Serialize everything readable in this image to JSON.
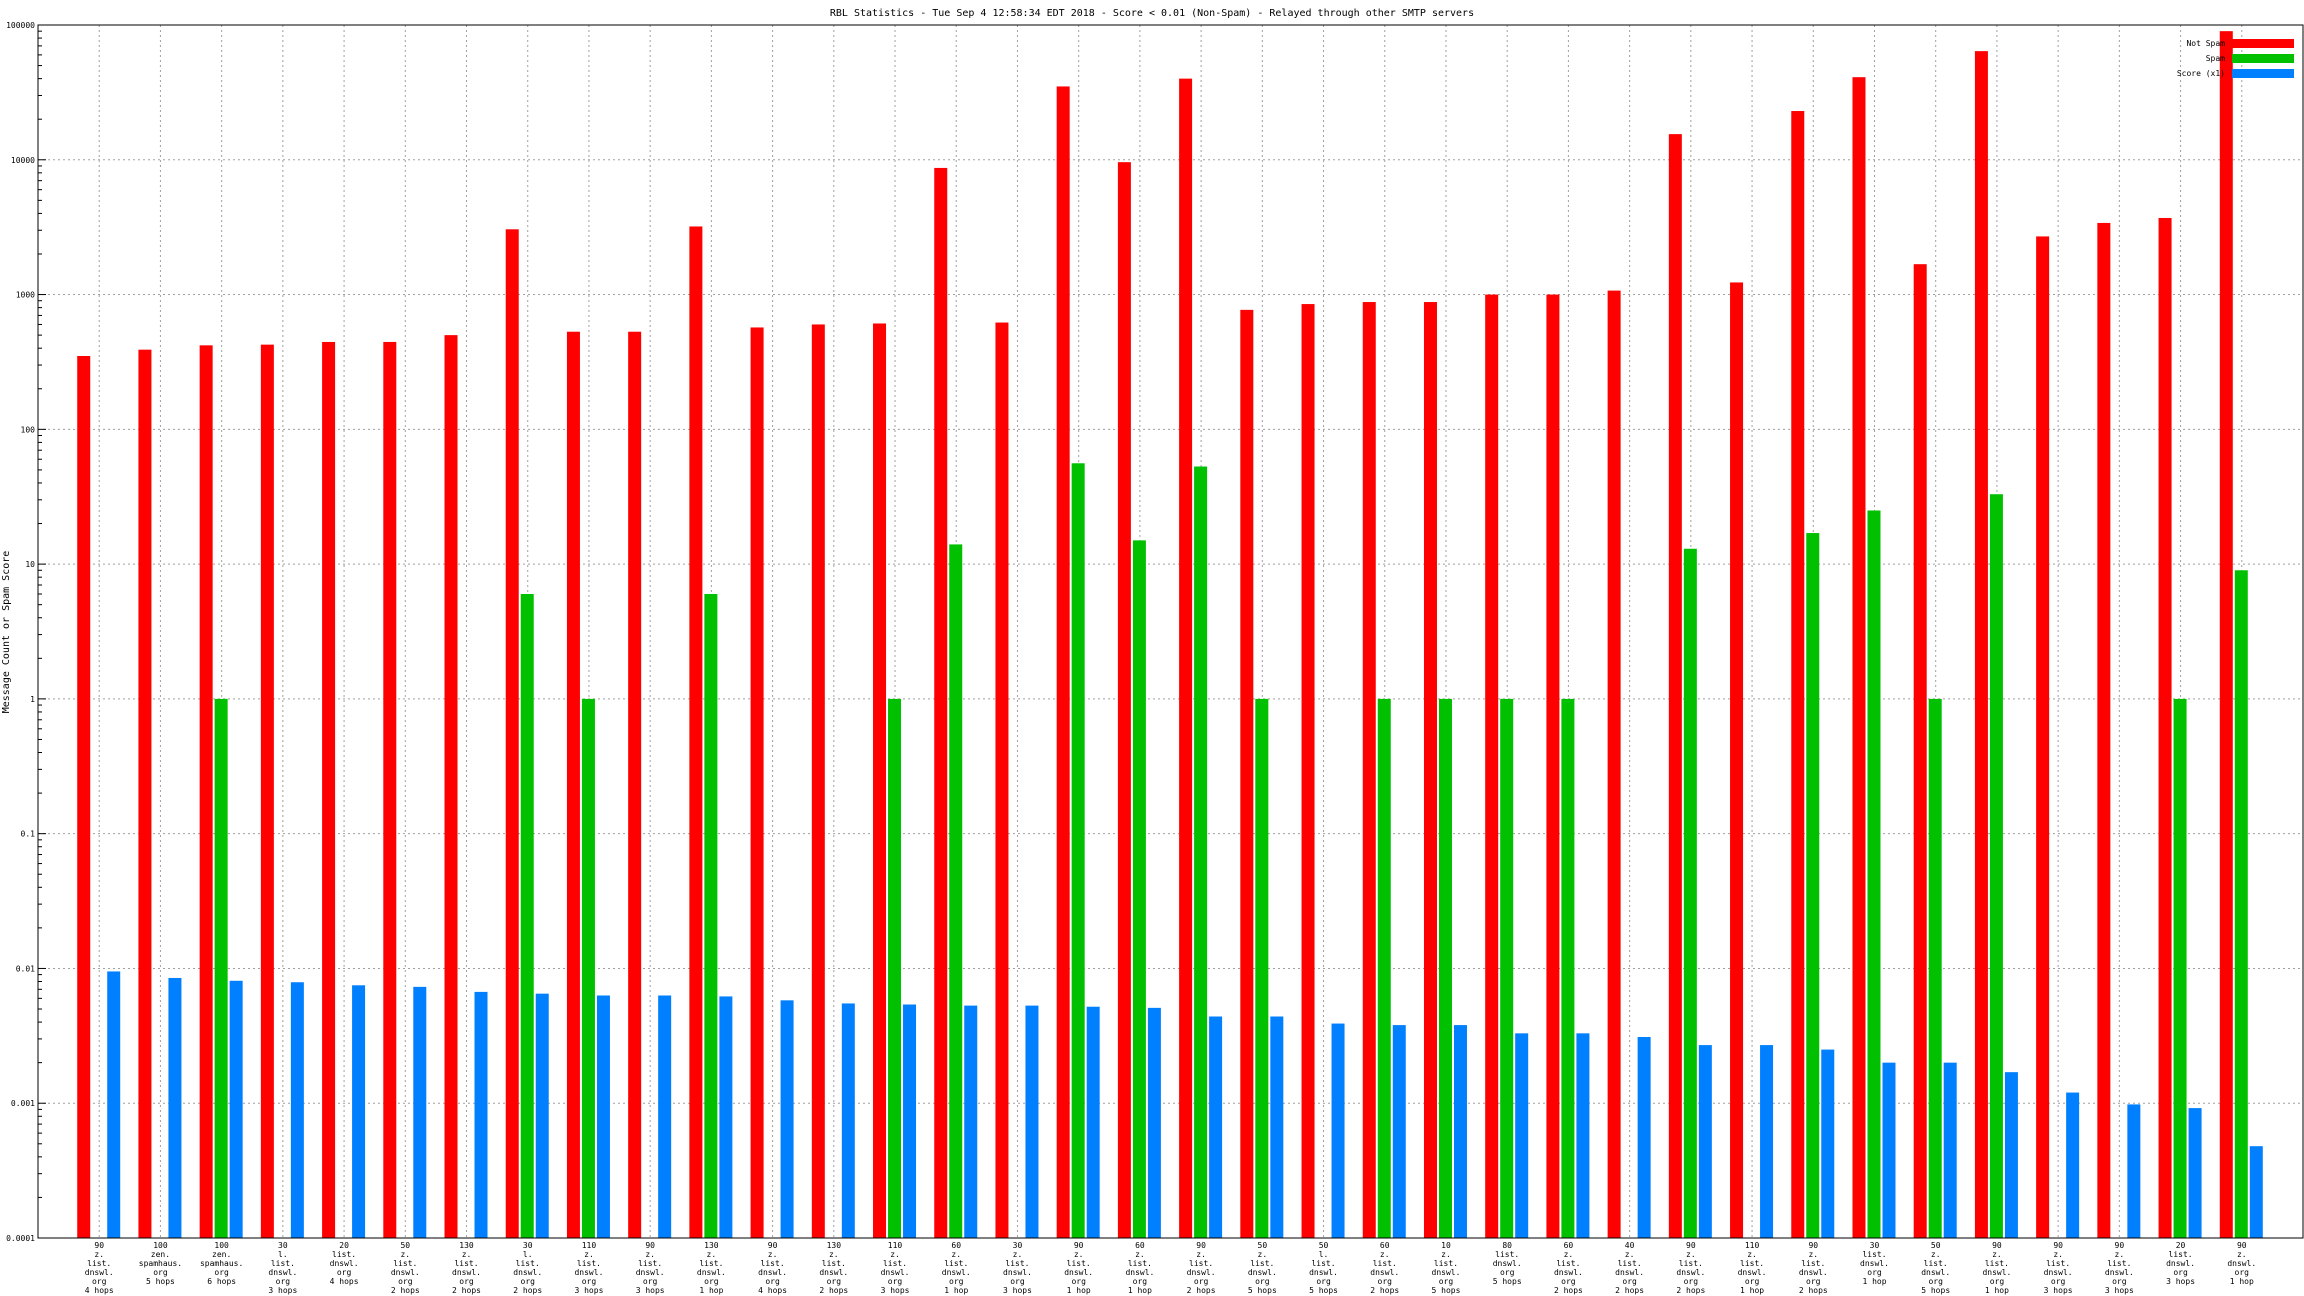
{
  "chart_data": {
    "type": "bar",
    "title": "RBL Statistics - Tue Sep  4 12:58:34 EDT 2018 - Score < 0.01 (Non-Spam) - Relayed through other SMTP servers",
    "ylabel": "Message Count or Spam Score",
    "xlabel": "",
    "yscale": "log",
    "ylim": [
      0.0001,
      100000
    ],
    "yticks": [
      "0.0001",
      "0.001",
      "0.01",
      "0.1",
      "1",
      "10",
      "100",
      "1000",
      "10000",
      "100000"
    ],
    "grid": true,
    "legend_position": "top-right",
    "categories": [
      [
        "90",
        "z.",
        "list.",
        "dnswl.",
        "org",
        "4 hops"
      ],
      [
        "100",
        "zen.",
        "spamhaus.",
        "org",
        "5 hops"
      ],
      [
        "100",
        "zen.",
        "spamhaus.",
        "org",
        "6 hops"
      ],
      [
        "30",
        "l.",
        "list.",
        "dnswl.",
        "org",
        "3 hops"
      ],
      [
        "20",
        "list.",
        "dnswl.",
        "org",
        "4 hops"
      ],
      [
        "50",
        "z.",
        "list.",
        "dnswl.",
        "org",
        "2 hops"
      ],
      [
        "130",
        "z.",
        "list.",
        "dnswl.",
        "org",
        "2 hops"
      ],
      [
        "30",
        "l.",
        "list.",
        "dnswl.",
        "org",
        "2 hops"
      ],
      [
        "110",
        "z.",
        "list.",
        "dnswl.",
        "org",
        "3 hops"
      ],
      [
        "90",
        "z.",
        "list.",
        "dnswl.",
        "org",
        "3 hops"
      ],
      [
        "130",
        "z.",
        "list.",
        "dnswl.",
        "org",
        "1 hop"
      ],
      [
        "90",
        "z.",
        "list.",
        "dnswl.",
        "org",
        "4 hops"
      ],
      [
        "130",
        "z.",
        "list.",
        "dnswl.",
        "org",
        "2 hops"
      ],
      [
        "110",
        "z.",
        "list.",
        "dnswl.",
        "org",
        "3 hops"
      ],
      [
        "60",
        "z.",
        "list.",
        "dnswl.",
        "org",
        "1 hop"
      ],
      [
        "30",
        "z.",
        "list.",
        "dnswl.",
        "org",
        "3 hops"
      ],
      [
        "90",
        "z.",
        "list.",
        "dnswl.",
        "org",
        "1 hop"
      ],
      [
        "60",
        "z.",
        "list.",
        "dnswl.",
        "org",
        "1 hop"
      ],
      [
        "90",
        "z.",
        "list.",
        "dnswl.",
        "org",
        "2 hops"
      ],
      [
        "50",
        "z.",
        "list.",
        "dnswl.",
        "org",
        "5 hops"
      ],
      [
        "50",
        "l.",
        "list.",
        "dnswl.",
        "org",
        "5 hops"
      ],
      [
        "60",
        "z.",
        "list.",
        "dnswl.",
        "org",
        "2 hops"
      ],
      [
        "10",
        "z.",
        "list.",
        "dnswl.",
        "org",
        "5 hops"
      ],
      [
        "80",
        "list.",
        "dnswl.",
        "org",
        "5 hops"
      ],
      [
        "60",
        "z.",
        "list.",
        "dnswl.",
        "org",
        "2 hops"
      ],
      [
        "40",
        "z.",
        "list.",
        "dnswl.",
        "org",
        "2 hops"
      ],
      [
        "90",
        "z.",
        "list.",
        "dnswl.",
        "org",
        "2 hops"
      ],
      [
        "110",
        "z.",
        "list.",
        "dnswl.",
        "org",
        "1 hop"
      ],
      [
        "90",
        "z.",
        "list.",
        "dnswl.",
        "org",
        "2 hops"
      ],
      [
        "30",
        "list.",
        "dnswl.",
        "org",
        "1 hop"
      ],
      [
        "50",
        "z.",
        "list.",
        "dnswl.",
        "org",
        "5 hops"
      ],
      [
        "90",
        "z.",
        "list.",
        "dnswl.",
        "org",
        "1 hop"
      ],
      [
        "90",
        "z.",
        "list.",
        "dnswl.",
        "org",
        "3 hops"
      ],
      [
        "90",
        "z.",
        "list.",
        "dnswl.",
        "org",
        "3 hops"
      ],
      [
        "20",
        "list.",
        "dnswl.",
        "org",
        "3 hops"
      ],
      [
        "90",
        "z.",
        "dnswl.",
        "org",
        "1 hop"
      ]
    ],
    "series": [
      {
        "name": "Not Spam",
        "color": "#ff0000",
        "values": [
          350,
          390,
          420,
          425,
          445,
          445,
          500,
          3050,
          530,
          530,
          3200,
          570,
          600,
          610,
          8700,
          620,
          35000,
          9600,
          40000,
          770,
          850,
          880,
          880,
          1000,
          1000,
          1070,
          15500,
          1230,
          23000,
          41000,
          1680,
          64000,
          2700,
          3400,
          3700,
          90000
        ]
      },
      {
        "name": "Spam",
        "color": "#00c000",
        "values": [
          null,
          null,
          1,
          null,
          null,
          null,
          null,
          6,
          1,
          null,
          6,
          null,
          null,
          1,
          14,
          null,
          56,
          15,
          53,
          1,
          null,
          1,
          1,
          1,
          1,
          null,
          13,
          null,
          17,
          25,
          1,
          33,
          null,
          null,
          1,
          9
        ]
      },
      {
        "name": "Score (x1)",
        "color": "#0080ff",
        "values": [
          0.0095,
          0.0085,
          0.0081,
          0.0079,
          0.0075,
          0.0073,
          0.0067,
          0.0065,
          0.0063,
          0.0063,
          0.0062,
          0.0058,
          0.0055,
          0.0054,
          0.0053,
          0.0053,
          0.0052,
          0.0051,
          0.0044,
          0.0044,
          0.0039,
          0.0038,
          0.0038,
          0.0033,
          0.0033,
          0.0031,
          0.0027,
          0.0027,
          0.0025,
          0.002,
          0.002,
          0.0017,
          0.0012,
          0.00098,
          0.00092,
          0.00048
        ]
      }
    ]
  }
}
